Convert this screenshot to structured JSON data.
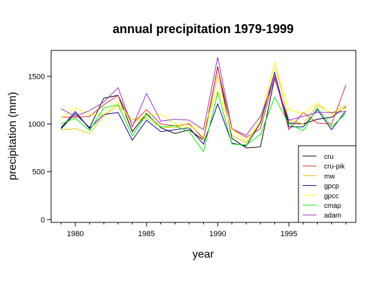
{
  "chart_data": {
    "type": "line",
    "title": "annual precipitation 1979-1999",
    "xlabel": "year",
    "ylabel": "precipitation (mm)",
    "x": [
      1979,
      1980,
      1981,
      1982,
      1983,
      1984,
      1985,
      1986,
      1987,
      1988,
      1989,
      1990,
      1991,
      1992,
      1993,
      1994,
      1995,
      1996,
      1997,
      1998,
      1999
    ],
    "xlim": [
      1978.3,
      1999.7
    ],
    "ylim": [
      -30,
      1770
    ],
    "xticks": [
      1980,
      1985,
      1990,
      1995
    ],
    "yticks": [
      0,
      500,
      1000,
      1500
    ],
    "grid": false,
    "legend_position": "bottom-right",
    "series": [
      {
        "name": "cru",
        "color": "#000000",
        "values": [
          950,
          1110,
          960,
          1270,
          1300,
          920,
          1110,
          960,
          900,
          940,
          830,
          1600,
          850,
          750,
          760,
          1480,
          1010,
          1000,
          1050,
          1070,
          1180
        ]
      },
      {
        "name": "cru-pik",
        "color": "#e8242c",
        "values": [
          1070,
          1070,
          1080,
          1200,
          1300,
          1000,
          1150,
          1000,
          980,
          1000,
          850,
          1590,
          950,
          860,
          950,
          1500,
          940,
          1120,
          1010,
          1000,
          1410
        ]
      },
      {
        "name": "mw",
        "color": "#e8c000",
        "values": [
          940,
          950,
          900,
          1080,
          1200,
          1050,
          1060,
          970,
          960,
          1010,
          830,
          1510,
          880,
          800,
          1020,
          1640,
          1040,
          1000,
          1200,
          1110,
          1200
        ]
      },
      {
        "name": "gpcp",
        "color": "#00008b",
        "values": [
          960,
          1130,
          950,
          1100,
          1120,
          830,
          1040,
          920,
          940,
          960,
          790,
          1210,
          800,
          770,
          1010,
          1540,
          970,
          970,
          1150,
          940,
          1140
        ]
      },
      {
        "name": "gpcc",
        "color": "#ffff00",
        "values": [
          1060,
          1170,
          1100,
          1100,
          1230,
          1000,
          1100,
          1100,
          1000,
          960,
          960,
          1350,
          950,
          810,
          1050,
          1640,
          1150,
          1110,
          1220,
          1100,
          1170
        ]
      },
      {
        "name": "cmap",
        "color": "#00ee00",
        "values": [
          1000,
          1060,
          930,
          1170,
          1200,
          880,
          1100,
          970,
          980,
          920,
          710,
          1330,
          790,
          780,
          890,
          1280,
          1000,
          930,
          1170,
          970,
          1110
        ]
      },
      {
        "name": "adam",
        "color": "#9b30c8",
        "values": [
          1160,
          1080,
          1140,
          1230,
          1380,
          970,
          1320,
          1030,
          1050,
          1040,
          940,
          1700,
          950,
          880,
          1080,
          1470,
          1040,
          1080,
          1120,
          1120,
          1130
        ]
      }
    ]
  }
}
